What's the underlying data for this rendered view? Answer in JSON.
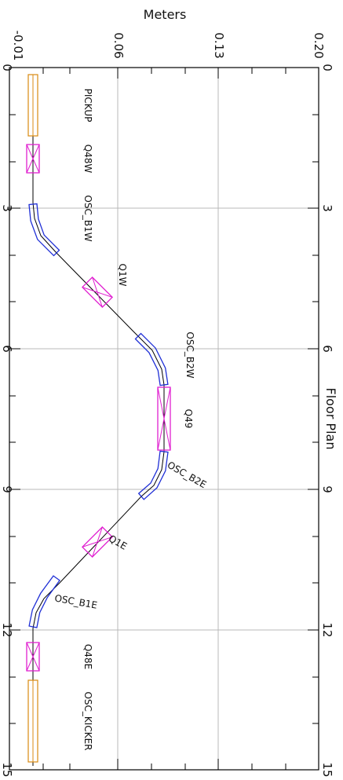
{
  "plot": {
    "title": "Floor Plan",
    "ylabel": "Meters",
    "s_ticks": [
      "0",
      "3",
      "6",
      "9",
      "12",
      "15"
    ],
    "m_ticks": [
      "-0.01",
      "0.06",
      "0.13",
      "0.20"
    ],
    "s_range": [
      0,
      15
    ],
    "m_range": [
      -0.01,
      0.2
    ],
    "grid": true
  },
  "colors": {
    "bend": "#1f2fd6",
    "quad": "#e020d0",
    "instrument": "#d98a10",
    "beamline": "#000000",
    "grid": "#b8b8b8"
  },
  "elements": [
    {
      "name": "PICKUP",
      "kind": "instrument",
      "s0": 0.2,
      "s1": 1.5,
      "m": -0.002
    },
    {
      "name": "Q48W",
      "kind": "quad",
      "s0": 1.9,
      "s1": 2.5,
      "m": -0.002
    },
    {
      "name": "OSC_B1W",
      "kind": "bend",
      "s0": 2.9,
      "s1": 3.9,
      "m": 0.012
    },
    {
      "name": "Q1W",
      "kind": "quad",
      "s0": 4.4,
      "s1": 5.0,
      "m": 0.04
    },
    {
      "name": "OSC_B2W",
      "kind": "bend",
      "s0": 5.6,
      "s1": 6.6,
      "m": 0.078
    },
    {
      "name": "Q49",
      "kind": "quad",
      "s0": 6.8,
      "s1": 8.1,
      "m": 0.092
    },
    {
      "name": "OSC_B2E",
      "kind": "bend",
      "s0": 8.3,
      "s1": 9.3,
      "m": 0.078
    },
    {
      "name": "Q1E",
      "kind": "quad",
      "s0": 9.9,
      "s1": 10.5,
      "m": 0.04
    },
    {
      "name": "OSC_B1E",
      "kind": "bend",
      "s0": 10.9,
      "s1": 11.9,
      "m": 0.012
    },
    {
      "name": "Q48E",
      "kind": "quad",
      "s0": 12.3,
      "s1": 12.9,
      "m": -0.002
    },
    {
      "name": "OSC_KICKER",
      "kind": "instrument",
      "s0": 13.2,
      "s1": 14.8,
      "m": -0.002
    }
  ]
}
